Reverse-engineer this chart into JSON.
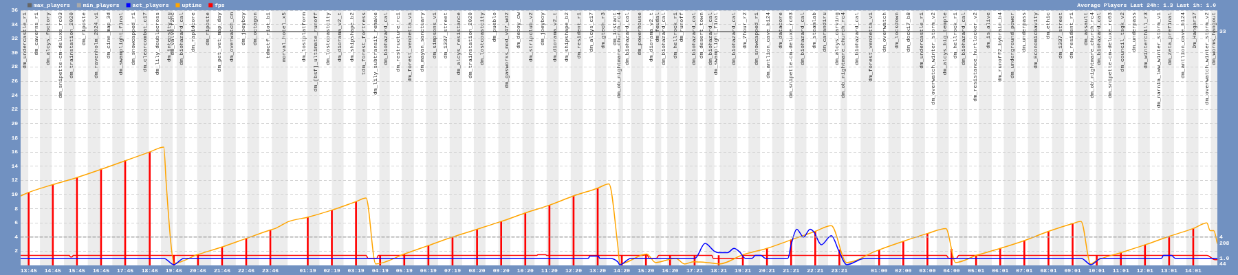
{
  "chart_data": {
    "type": "line",
    "title": "Average Players Last 24h: 1.3 Last 1h: 1.0",
    "legend": "top left",
    "grid": "y",
    "xlim": [
      "2000-01-01T13:25",
      "2000-01-03T15:01"
    ],
    "xticks": [
      {
        "value": "2000-01-01T13:45",
        "label": "13:45"
      },
      {
        "value": "2000-01-01T14:45",
        "label": "14:45"
      },
      {
        "value": "2000-01-01T15:45",
        "label": "15:45"
      },
      {
        "value": "2000-01-01T16:45",
        "label": "16:45"
      },
      {
        "value": "2000-01-01T17:45",
        "label": "17:45"
      },
      {
        "value": "2000-01-01T18:46",
        "label": "18:46"
      },
      {
        "value": "2000-01-01T19:46",
        "label": "19:46"
      },
      {
        "value": "2000-01-01T20:46",
        "label": "20:46"
      },
      {
        "value": "2000-01-01T21:46",
        "label": "21:46"
      },
      {
        "value": "2000-01-01T22:46",
        "label": "22:46"
      },
      {
        "value": "2000-01-01T23:46",
        "label": "23:46"
      },
      {
        "value": "2000-01-02T01:19",
        "label": "01:19"
      },
      {
        "value": "2000-01-02T02:19",
        "label": "02:19"
      },
      {
        "value": "2000-01-02T03:19",
        "label": "03:19"
      },
      {
        "value": "2000-01-02T04:19",
        "label": "04:19"
      },
      {
        "value": "2000-01-02T05:19",
        "label": "05:19"
      },
      {
        "value": "2000-01-02T06:19",
        "label": "06:19"
      },
      {
        "value": "2000-01-02T07:19",
        "label": "07:19"
      },
      {
        "value": "2000-01-02T08:20",
        "label": "08:20"
      },
      {
        "value": "2000-01-02T09:20",
        "label": "09:20"
      },
      {
        "value": "2000-01-02T10:20",
        "label": "10:20"
      },
      {
        "value": "2000-01-02T11:20",
        "label": "11:20"
      },
      {
        "value": "2000-01-02T12:20",
        "label": "12:20"
      },
      {
        "value": "2000-01-02T13:20",
        "label": "13:20"
      },
      {
        "value": "2000-01-02T14:20",
        "label": "14:20"
      },
      {
        "value": "2000-01-02T15:20",
        "label": "15:20"
      },
      {
        "value": "2000-01-02T16:20",
        "label": "16:20"
      },
      {
        "value": "2000-01-02T17:21",
        "label": "17:21"
      },
      {
        "value": "2000-01-02T18:21",
        "label": "18:21"
      },
      {
        "value": "2000-01-02T19:21",
        "label": "19:21"
      },
      {
        "value": "2000-01-02T20:21",
        "label": "20:21"
      },
      {
        "value": "2000-01-02T21:21",
        "label": "21:21"
      },
      {
        "value": "2000-01-02T22:21",
        "label": "22:21"
      },
      {
        "value": "2000-01-02T23:21",
        "label": "23:21"
      },
      {
        "value": "2000-01-03T01:00",
        "label": "01:00"
      },
      {
        "value": "2000-01-03T02:00",
        "label": "02:00"
      },
      {
        "value": "2000-01-03T03:00",
        "label": "03:00"
      },
      {
        "value": "2000-01-03T04:00",
        "label": "04:00"
      },
      {
        "value": "2000-01-03T05:01",
        "label": "05:01"
      },
      {
        "value": "2000-01-03T06:01",
        "label": "06:01"
      },
      {
        "value": "2000-01-03T07:01",
        "label": "07:01"
      },
      {
        "value": "2000-01-03T08:01",
        "label": "08:01"
      },
      {
        "value": "2000-01-03T09:01",
        "label": "09:01"
      },
      {
        "value": "2000-01-03T10:01",
        "label": "10:01"
      },
      {
        "value": "2000-01-03T11:01",
        "label": "11:01"
      },
      {
        "value": "2000-01-03T12:01",
        "label": "12:01"
      },
      {
        "value": "2000-01-03T13:01",
        "label": "13:01"
      },
      {
        "value": "2000-01-03T14:01",
        "label": "14:01"
      }
    ],
    "ylim": [
      0,
      36
    ],
    "yticks": [
      2,
      4,
      6,
      8,
      10,
      12,
      14,
      16,
      18,
      20,
      22,
      24,
      26,
      28,
      30,
      32,
      34,
      36
    ],
    "series": [
      {
        "name": "max_players",
        "color": "#666666",
        "x": [
          "2000-01-01T13:25",
          "2000-01-03T15:01"
        ],
        "values": [
          33,
          33
        ]
      },
      {
        "name": "min_players",
        "color": "#aaaaaa",
        "line_style": "dashed",
        "x": [
          "2000-01-01T13:25",
          "2000-01-03T15:01"
        ],
        "values": [
          4,
          4
        ]
      },
      {
        "name": "act_players",
        "color": "#0000ff",
        "x": [
          "2000-01-01T13:25",
          "2000-01-01T19:21",
          "2000-01-01T19:46",
          "2000-01-01T20:11",
          "2000-01-02T12:57",
          "2000-01-02T13:00",
          "2000-01-02T13:22",
          "2000-01-02T13:25",
          "2000-01-02T13:50",
          "2000-01-02T14:10",
          "2000-01-02T14:15",
          "2000-01-02T14:43",
          "2000-01-02T17:22",
          "2000-01-02T17:47",
          "2000-01-02T18:10",
          "2000-01-02T18:20",
          "2000-01-02T18:43",
          "2000-01-02T18:59",
          "2000-01-02T19:13",
          "2000-01-02T19:27",
          "2000-01-02T19:44",
          "2000-01-02T19:52",
          "2000-01-02T20:06",
          "2000-01-02T20:17",
          "2000-01-02T21:13",
          "2000-01-02T21:21",
          "2000-01-02T21:35",
          "2000-01-02T21:52",
          "2000-01-02T22:08",
          "2000-01-02T22:19",
          "2000-01-02T22:31",
          "2000-01-02T22:36",
          "2000-01-02T23:01",
          "2000-01-02T23:20",
          "2000-01-02T23:39",
          "2000-01-03T00:16",
          "2000-01-03T00:25",
          "2000-01-03T09:22",
          "2000-01-03T09:47",
          "2000-01-03T10:12",
          "2000-01-03T12:42",
          "2000-01-03T12:47",
          "2000-01-03T13:07",
          "2000-01-03T13:16",
          "2000-01-03T15:01"
        ],
        "values": [
          1.0,
          1.0,
          0.1,
          1.0,
          1.0,
          1.3,
          1.3,
          1.0,
          1.0,
          0.5,
          0.1,
          1.0,
          1.0,
          3.1,
          2.0,
          1.8,
          1.8,
          2.4,
          1.9,
          1.0,
          1.0,
          1.4,
          1.4,
          1.0,
          1.0,
          2.9,
          5.1,
          4.0,
          5.1,
          4.6,
          3.2,
          2.9,
          4.2,
          2.0,
          0.1,
          0.9,
          1.0,
          1.0,
          0.1,
          1.0,
          1.0,
          1.4,
          1.4,
          1.0,
          1.0
        ]
      },
      {
        "name": "uptime",
        "color": "#ffa500",
        "x": [
          "2000-01-01T13:25",
          "2000-01-01T13:45",
          "2000-01-01T14:45",
          "2000-01-01T15:45",
          "2000-01-01T18:46",
          "2000-01-01T19:21",
          "2000-01-01T19:27",
          "2000-01-01T19:38",
          "2000-01-01T19:46",
          "2000-01-01T20:44",
          "2000-01-01T21:46",
          "2000-01-01T22:46",
          "2000-01-01T23:46",
          "2000-01-01T23:58",
          "2000-01-02T00:32",
          "2000-01-02T01:19",
          "2000-01-02T02:19",
          "2000-01-02T03:19",
          "2000-01-02T03:44",
          "2000-01-02T04:08",
          "2000-01-02T05:19",
          "2000-01-02T06:19",
          "2000-01-02T07:19",
          "2000-01-02T08:20",
          "2000-01-02T09:20",
          "2000-01-02T10:20",
          "2000-01-02T11:20",
          "2000-01-02T12:20",
          "2000-01-02T13:20",
          "2000-01-02T13:48",
          "2000-01-02T14:10",
          "2000-01-02T14:15",
          "2000-01-02T15:22",
          "2000-01-02T15:44",
          "2000-01-02T16:34",
          "2000-01-02T16:56",
          "2000-01-02T17:18",
          "2000-01-02T17:53",
          "2000-01-02T18:23",
          "2000-01-02T19:21",
          "2000-01-02T20:21",
          "2000-01-02T21:21",
          "2000-01-02T22:21",
          "2000-01-02T23:01",
          "2000-01-02T23:39",
          "2000-01-03T00:47",
          "2000-01-03T01:00",
          "2000-01-03T02:00",
          "2000-01-03T03:00",
          "2000-01-03T03:46",
          "2000-01-03T04:10",
          "2000-01-03T05:01",
          "2000-01-03T06:01",
          "2000-01-03T07:01",
          "2000-01-03T08:01",
          "2000-01-03T09:01",
          "2000-01-03T09:22",
          "2000-01-03T09:46",
          "2000-01-03T10:01",
          "2000-01-03T11:01",
          "2000-01-03T12:01",
          "2000-01-03T13:01",
          "2000-01-03T14:01",
          "2000-01-03T14:35",
          "2000-01-03T14:43",
          "2000-01-03T14:52",
          "2000-01-03T15:01"
        ],
        "values": [
          9.8,
          10.3,
          11.4,
          12.4,
          16.0,
          16.7,
          11.6,
          3.5,
          0.3,
          1.5,
          2.6,
          3.8,
          5.0,
          5.2,
          6.2,
          6.8,
          7.8,
          9.0,
          9.5,
          0.2,
          1.6,
          2.8,
          4.0,
          5.1,
          6.2,
          7.4,
          8.5,
          9.8,
          10.9,
          11.5,
          2.8,
          0.2,
          1.6,
          0.4,
          1.0,
          0.2,
          0.5,
          0.4,
          0.2,
          1.5,
          2.4,
          3.6,
          4.8,
          5.6,
          0.4,
          1.9,
          2.2,
          3.4,
          4.5,
          5.2,
          0.4,
          1.4,
          2.4,
          3.5,
          4.8,
          5.9,
          6.2,
          0.2,
          0.7,
          1.8,
          2.9,
          4.1,
          5.2,
          6.0,
          4.9,
          4.9,
          3.1
        ]
      },
      {
        "name": "fps",
        "color": "#ff0000",
        "x": [
          "2000-01-01T13:25",
          "2000-01-01T15:26",
          "2000-01-01T15:29",
          "2000-01-01T15:33",
          "2000-01-01T15:36",
          "2000-01-02T03:44",
          "2000-01-02T03:49",
          "2000-01-02T04:11",
          "2000-01-02T04:14",
          "2000-01-02T10:49",
          "2000-01-02T10:51",
          "2000-01-02T11:11",
          "2000-01-02T11:13",
          "2000-01-02T15:10",
          "2000-01-02T15:22",
          "2000-01-02T15:29",
          "2000-01-02T15:46",
          "2000-01-02T15:52",
          "2000-01-02T18:04",
          "2000-01-02T18:07",
          "2000-01-02T19:19",
          "2000-01-02T19:22",
          "2000-01-03T03:47",
          "2000-01-03T03:53",
          "2000-01-03T04:12",
          "2000-01-03T04:18",
          "2000-01-03T14:35",
          "2000-01-03T14:55",
          "2000-01-03T15:01"
        ],
        "values": [
          1.4,
          1.4,
          1.2,
          1.2,
          1.4,
          1.4,
          1.0,
          1.0,
          1.4,
          1.4,
          1.5,
          1.5,
          1.4,
          1.4,
          1.5,
          1.0,
          1.0,
          1.4,
          1.4,
          1.0,
          1.0,
          1.4,
          1.4,
          1.0,
          1.0,
          1.4,
          1.4,
          0.8,
          0.8
        ]
      },
      {
        "type": "bar",
        "color": "#ff0000",
        "x": [
          "2000-01-01T13:45",
          "2000-01-01T14:45",
          "2000-01-01T15:45",
          "2000-01-01T16:45",
          "2000-01-01T17:45",
          "2000-01-01T18:46",
          "2000-01-01T19:46",
          "2000-01-01T20:46",
          "2000-01-01T21:46",
          "2000-01-01T22:46",
          "2000-01-01T23:46",
          "2000-01-02T01:19",
          "2000-01-02T02:19",
          "2000-01-02T03:19",
          "2000-01-02T04:19",
          "2000-01-02T05:19",
          "2000-01-02T06:19",
          "2000-01-02T07:19",
          "2000-01-02T08:20",
          "2000-01-02T09:20",
          "2000-01-02T10:20",
          "2000-01-02T11:20",
          "2000-01-02T12:20",
          "2000-01-02T13:20",
          "2000-01-02T14:20",
          "2000-01-02T15:20",
          "2000-01-02T16:20",
          "2000-01-02T17:21",
          "2000-01-02T18:21",
          "2000-01-02T19:21",
          "2000-01-02T20:21",
          "2000-01-02T21:21",
          "2000-01-02T22:21",
          "2000-01-02T23:21",
          "2000-01-03T01:00",
          "2000-01-03T02:00",
          "2000-01-03T03:00",
          "2000-01-03T04:00",
          "2000-01-03T05:01",
          "2000-01-03T06:01",
          "2000-01-03T07:01",
          "2000-01-03T08:01",
          "2000-01-03T09:01",
          "2000-01-03T10:01",
          "2000-01-03T11:01",
          "2000-01-03T12:01",
          "2000-01-03T13:01",
          "2000-01-03T14:01"
        ],
        "values": [
          10.3,
          11.4,
          12.4,
          13.6,
          14.8,
          16.0,
          1.4,
          1.5,
          2.6,
          3.8,
          5.0,
          6.8,
          7.8,
          9.0,
          1.4,
          1.6,
          2.8,
          4.0,
          5.1,
          6.2,
          7.4,
          8.5,
          9.8,
          10.9,
          1.4,
          1.6,
          1.4,
          1.4,
          1.4,
          1.5,
          2.4,
          3.6,
          4.8,
          2.2,
          2.2,
          3.4,
          4.5,
          2.3,
          1.4,
          2.4,
          3.5,
          4.8,
          5.9,
          1.4,
          1.8,
          2.9,
          4.1,
          5.2
        ]
      }
    ],
    "bands": [
      {
        "axis": "x",
        "from": "2000-01-01T13:25",
        "to": "2000-01-01T13:44",
        "label": "dm_undercastle_r1",
        "color": "#ececec"
      },
      {
        "axis": "x",
        "from": "2000-01-01T14:13",
        "to": "2000-01-01T14:42",
        "label": "dm_alcys_factory",
        "color": "#ececec"
      },
      {
        "axis": "x",
        "from": "2000-01-01T15:13",
        "to": "2000-01-01T15:41",
        "label": "dm_trainstation_2020",
        "color": "#ececec"
      },
      {
        "axis": "x",
        "from": "2000-01-01T16:12",
        "to": "2000-01-01T16:43",
        "label": "dm_ravenholm_2024_v1",
        "color": "#ececec"
      },
      {
        "axis": "x",
        "from": "2000-01-01T17:13",
        "to": "2000-01-01T17:44",
        "label": "dm_swamplight_final",
        "color": "#ececec"
      },
      {
        "axis": "x",
        "from": "2000-01-01T18:15",
        "to": "2000-01-01T18:44",
        "label": "dm_clearcombat_c17",
        "color": "#ececec"
      },
      {
        "axis": "x",
        "from": "2000-01-01T19:14",
        "to": "2000-01-01T19:43",
        "label": "dm_intensity_cu",
        "color": "#ececec"
      },
      {
        "axis": "x",
        "from": "2000-01-01T19:53",
        "to": "2000-01-01T20:14",
        "label": "dm_biohazard_cal",
        "color": "#ececec"
      },
      {
        "axis": "x",
        "from": "2000-01-01T20:44",
        "to": "2000-01-01T21:19",
        "label": "dm_riposte",
        "color": "#ececec"
      },
      {
        "axis": "x",
        "from": "2000-01-01T21:49",
        "to": "2000-01-01T22:20",
        "label": "dm_overwatch_cm",
        "color": "#ececec"
      },
      {
        "axis": "x",
        "from": "2000-01-01T22:49",
        "to": "2000-01-01T23:18",
        "label": "dm_octagon",
        "color": "#ececec"
      },
      {
        "axis": "x",
        "from": "2000-01-01T23:50",
        "to": "2000-01-02T00:29",
        "label": "morval_hotel_x5",
        "color": "#ececec"
      },
      {
        "axis": "x",
        "from": "2000-01-02T01:18",
        "to": "2000-01-02T01:48",
        "label": "dm_[bsf]_ultimate_runoff",
        "color": "#ececec"
      },
      {
        "axis": "x",
        "from": "2000-01-02T02:19",
        "to": "2000-01-02T02:48",
        "label": "dm_diorama_v2_t",
        "color": "#ececec"
      },
      {
        "axis": "x",
        "from": "2000-01-02T03:18",
        "to": "2000-01-02T03:47",
        "label": "tdm_forest_fortress",
        "color": "#ececec"
      },
      {
        "axis": "x",
        "from": "2000-01-02T04:17",
        "to": "2000-01-02T04:43",
        "label": "dm_biohazard_cal",
        "color": "#ececec"
      },
      {
        "axis": "x",
        "from": "2000-01-02T05:13",
        "to": "2000-01-02T05:43",
        "label": "dm_forest_vendetta_v1",
        "color": "#ececec"
      },
      {
        "axis": "x",
        "from": "2000-01-02T06:13",
        "to": "2000-01-02T06:43",
        "label": "dm_simpsons_v1",
        "color": "#ececec"
      },
      {
        "axis": "x",
        "from": "2000-01-02T07:12",
        "to": "2000-01-02T07:43",
        "label": "dm_alcys_resistance",
        "color": "#ececec"
      },
      {
        "axis": "x",
        "from": "2000-01-02T08:12",
        "to": "2000-01-02T08:41",
        "label": "dm_lostcoastcity",
        "color": "#ececec"
      },
      {
        "axis": "x",
        "from": "2000-01-02T09:13",
        "to": "2000-01-02T09:43",
        "label": "dm_gasworks_mod_v47_wd2",
        "color": "#ececec"
      },
      {
        "axis": "x",
        "from": "2000-01-02T10:13",
        "to": "2000-01-02T10:43",
        "label": "dm_stripclub_v2",
        "color": "#ececec"
      },
      {
        "axis": "x",
        "from": "2000-01-02T11:13",
        "to": "2000-01-02T11:43",
        "label": "dm_diorama_v2_t",
        "color": "#ececec"
      },
      {
        "axis": "x",
        "from": "2000-01-02T12:13",
        "to": "2000-01-02T12:43",
        "label": "dm_resident_r1",
        "color": "#ececec"
      },
      {
        "axis": "x",
        "from": "2000-01-02T13:13",
        "to": "2000-01-02T13:42",
        "label": "dm_gtech_r3",
        "color": "#ececec"
      },
      {
        "axis": "x",
        "from": "2000-01-02T14:12",
        "to": "2000-01-02T14:23",
        "label": "dm_ob_nightmare_church_rc4",
        "color": "#ececec"
      },
      {
        "axis": "x",
        "from": "2000-01-02T14:43",
        "to": "2000-01-02T15:13",
        "label": "dm_powerhouse",
        "color": "#ececec"
      },
      {
        "axis": "x",
        "from": "2000-01-02T15:43",
        "to": "2000-01-02T15:58",
        "label": "dm_feudal",
        "color": "#ececec"
      },
      {
        "axis": "x",
        "from": "2000-01-02T16:13",
        "to": "2000-01-02T16:43",
        "label": "dm_hellrock_r1",
        "color": "#ececec"
      },
      {
        "axis": "x",
        "from": "2000-01-02T16:58",
        "to": "2000-01-02T17:29",
        "label": "dm_biohazard_cal",
        "color": "#ececec"
      },
      {
        "axis": "x",
        "from": "2000-01-02T17:48",
        "to": "2000-01-02T18:10",
        "label": "dm_biohazard_cal",
        "color": "#ececec"
      },
      {
        "axis": "x",
        "from": "2000-01-02T18:24",
        "to": "2000-01-02T19:07",
        "label": "dm_biohazard_cal",
        "color": "#ececec"
      },
      {
        "axis": "x",
        "from": "2000-01-02T19:35",
        "to": "2000-01-02T20:04",
        "label": "dm_snowcapped_r1",
        "color": "#ececec"
      },
      {
        "axis": "x",
        "from": "2000-01-02T20:34",
        "to": "2000-01-02T21:04",
        "label": "dm_datacore",
        "color": "#ececec"
      },
      {
        "axis": "x",
        "from": "2000-01-02T21:30",
        "to": "2000-01-02T21:59",
        "label": "dm_biohazard_cal",
        "color": "#ececec"
      },
      {
        "axis": "x",
        "from": "2000-01-02T22:28",
        "to": "2000-01-02T22:53",
        "label": "dm_carandiru",
        "color": "#ececec"
      },
      {
        "axis": "x",
        "from": "2000-01-02T23:24",
        "to": "2000-01-02T23:40",
        "label": "dm_ob_nightmare_church_rc4",
        "color": "#ececec"
      },
      {
        "axis": "x",
        "from": "2000-01-03T00:14",
        "to": "2000-01-03T00:49",
        "label": "dm_forest_vendetta_v1",
        "color": "#ececec"
      },
      {
        "axis": "x",
        "from": "2000-01-03T01:23",
        "to": "2000-01-03T01:54",
        "label": "dm_lockdown",
        "color": "#ececec"
      },
      {
        "axis": "x",
        "from": "2000-01-03T02:23",
        "to": "2000-01-03T02:54",
        "label": "dm_undercastle_r1",
        "color": "#ececec"
      },
      {
        "axis": "x",
        "from": "2000-01-03T03:23",
        "to": "2000-01-03T03:53",
        "label": "dm_alcys_big_temple",
        "color": "#ececec"
      },
      {
        "axis": "x",
        "from": "2000-01-03T04:19",
        "to": "2000-01-03T04:39",
        "label": "dm_biohazard_cal",
        "color": "#ececec"
      },
      {
        "axis": "x",
        "from": "2000-01-03T05:08",
        "to": "2000-01-03T05:40",
        "label": "dm_is_alive",
        "color": "#ececec"
      },
      {
        "axis": "x",
        "from": "2000-01-03T06:10",
        "to": "2000-01-03T06:40",
        "label": "dm_underground_power",
        "color": "#ececec"
      },
      {
        "axis": "x",
        "from": "2000-01-03T07:10",
        "to": "2000-01-03T07:39",
        "label": "dm_EconomicGavity",
        "color": "#ececec"
      },
      {
        "axis": "x",
        "from": "2000-01-03T08:10",
        "to": "2000-01-03T08:40",
        "label": "dm_1337_street",
        "color": "#ececec"
      },
      {
        "axis": "x",
        "from": "2000-01-03T09:08",
        "to": "2000-01-03T09:43",
        "label": "dm_assault",
        "color": "#ececec"
      },
      {
        "axis": "x",
        "from": "2000-01-03T09:59",
        "to": "2000-01-03T10:16",
        "label": "dm_biohazard_cal",
        "color": "#ececec"
      },
      {
        "axis": "x",
        "from": "2000-01-03T10:43",
        "to": "2000-01-03T11:14",
        "label": "dm_council_tsgk_v2",
        "color": "#ececec"
      },
      {
        "axis": "x",
        "from": "2000-01-03T11:44",
        "to": "2000-01-03T12:13",
        "label": "dm_winterchill_r3",
        "color": "#ececec"
      },
      {
        "axis": "x",
        "from": "2000-01-03T12:44",
        "to": "2000-01-03T13:13",
        "label": "dm_zeta_prefinal",
        "color": "#ececec"
      },
      {
        "axis": "x",
        "from": "2000-01-03T13:44",
        "to": "2000-01-03T14:14",
        "label": "Dm_Hangar17",
        "color": "#ececec"
      },
      {
        "axis": "x",
        "from": "2000-01-03T14:45",
        "to": "2000-01-03T15:01",
        "label": "dm_worms_hangout",
        "color": "#ececec"
      }
    ],
    "annotations": [
      {
        "text": "dm_caverns_r1",
        "x": "2000-01-01T14:13"
      },
      {
        "text": "dm_snipette-cm-deluxe_rc03",
        "x": "2000-01-01T15:13"
      },
      {
        "text": "dm_riposte",
        "x": "2000-01-01T16:12"
      },
      {
        "text": "dm_cine_map_3d",
        "x": "2000-01-01T17:13"
      },
      {
        "text": "dm_snowcapped_r1",
        "x": "2000-01-01T18:15"
      },
      {
        "text": "dm_lily_doublecross",
        "x": "2000-01-01T19:14"
      },
      {
        "text": "dm_valve_r2hc",
        "x": "2000-01-01T19:53"
      },
      {
        "text": "dm_rapidcore",
        "x": "2000-01-01T20:44"
      },
      {
        "text": "dm_pet_vet_map_day",
        "x": "2000-01-01T21:49"
      },
      {
        "text": "dm_joeyboy",
        "x": "2000-01-01T22:49"
      },
      {
        "text": "tdmctf_riot_b1",
        "x": "2000-01-01T23:50"
      },
      {
        "text": "dm_lostplatform",
        "x": "2000-01-02T01:18"
      },
      {
        "text": "dm_lostcoastcity",
        "x": "2000-01-02T02:19"
      },
      {
        "text": "dm_shipshape_b2",
        "x": "2000-01-02T03:18"
      },
      {
        "text": "dm_lily_subtransit_remake",
        "x": "2000-01-02T04:17"
      },
      {
        "text": "dm_restructure_rc1",
        "x": "2000-01-02T05:13"
      },
      {
        "text": "dm_mayan_sanctuary",
        "x": "2000-01-02T06:13"
      },
      {
        "text": "dm_1337_street",
        "x": "2000-01-02T07:12"
      },
      {
        "text": "dm_trainstation_2020",
        "x": "2000-01-02T08:12"
      },
      {
        "text": "dm_pueblo",
        "x": "2000-01-02T09:13"
      },
      {
        "text": "dm_decoy_cw",
        "x": "2000-01-02T10:13"
      },
      {
        "text": "dm_joeyboy",
        "x": "2000-01-02T11:13"
      },
      {
        "text": "dm_shipshape_b2",
        "x": "2000-01-02T12:13"
      },
      {
        "text": "dm_alcys_c17",
        "x": "2000-01-02T13:13"
      },
      {
        "text": "dm_instant",
        "x": "2000-01-02T14:12"
      },
      {
        "text": "dm_biohazard_cal",
        "x": "2000-01-02T14:43"
      },
      {
        "text": "dm_diorama_v2_t",
        "x": "2000-01-02T15:43"
      },
      {
        "text": "dm_biohazard_cal",
        "x": "2000-01-02T16:13"
      },
      {
        "text": "dm_runoff",
        "x": "2000-01-02T16:58"
      },
      {
        "text": "dm_desert_town",
        "x": "2000-01-02T17:48"
      },
      {
        "text": "dm_swamplight_final",
        "x": "2000-01-02T18:24"
      },
      {
        "text": "dm_7hour_r2",
        "x": "2000-01-02T19:35"
      },
      {
        "text": "dm_antlion_cave_b124",
        "x": "2000-01-02T20:34"
      },
      {
        "text": "dm_snipette-cm-deluxe_rc03",
        "x": "2000-01-02T21:30"
      },
      {
        "text": "dm_steamlab",
        "x": "2000-01-02T22:28"
      },
      {
        "text": "dm_alcys_carving",
        "x": "2000-01-02T23:24"
      },
      {
        "text": "dm_biohazard_cal",
        "x": "2000-01-03T00:14"
      },
      {
        "text": "dm_overwatch",
        "x": "2000-01-03T01:23"
      },
      {
        "text": "dm_dock17_b8",
        "x": "2000-01-03T02:23"
      },
      {
        "text": "dm_overwatch_winter_storm_v2",
        "x": "2000-01-03T03:23"
      },
      {
        "text": "dm_hellrock_r1",
        "x": "2000-01-03T04:19"
      },
      {
        "text": "dm_resistance_hurtlocker_v2",
        "x": "2000-01-03T05:08"
      },
      {
        "text": "dm_runoff2_bybrain_b4",
        "x": "2000-01-03T06:10"
      },
      {
        "text": "dm_underpass",
        "x": "2000-01-03T07:10"
      },
      {
        "text": "dm_ethic",
        "x": "2000-01-03T08:10"
      },
      {
        "text": "dm_resident_r1",
        "x": "2000-01-03T09:08"
      },
      {
        "text": "dm_ob_nightmare_church_rc4",
        "x": "2000-01-03T09:59"
      },
      {
        "text": "dm_snipette-cm-deluxe_rc03",
        "x": "2000-01-03T10:43"
      },
      {
        "text": "dm_underpass",
        "x": "2000-01-03T11:44"
      },
      {
        "text": "dm_narnia_lww_winter_storm_v1",
        "x": "2000-01-03T12:44"
      },
      {
        "text": "dm_antlion_cave_b124",
        "x": "2000-01-03T13:44"
      },
      {
        "text": "dm_overwatch_winter_storm_v2",
        "x": "2000-01-03T14:45"
      },
      {
        "text": "33",
        "x": "2000-01-03T15:01",
        "y": 33
      },
      {
        "text": "4",
        "x": "2000-01-03T15:01",
        "y": 4
      },
      {
        "text": "208",
        "x": "2000-01-03T15:01",
        "y": 3.1
      },
      {
        "text": "1.0",
        "x": "2000-01-03T15:01",
        "y": 1.0
      },
      {
        "text": "44",
        "x": "2000-01-03T15:01",
        "y": 0.8
      }
    ]
  }
}
